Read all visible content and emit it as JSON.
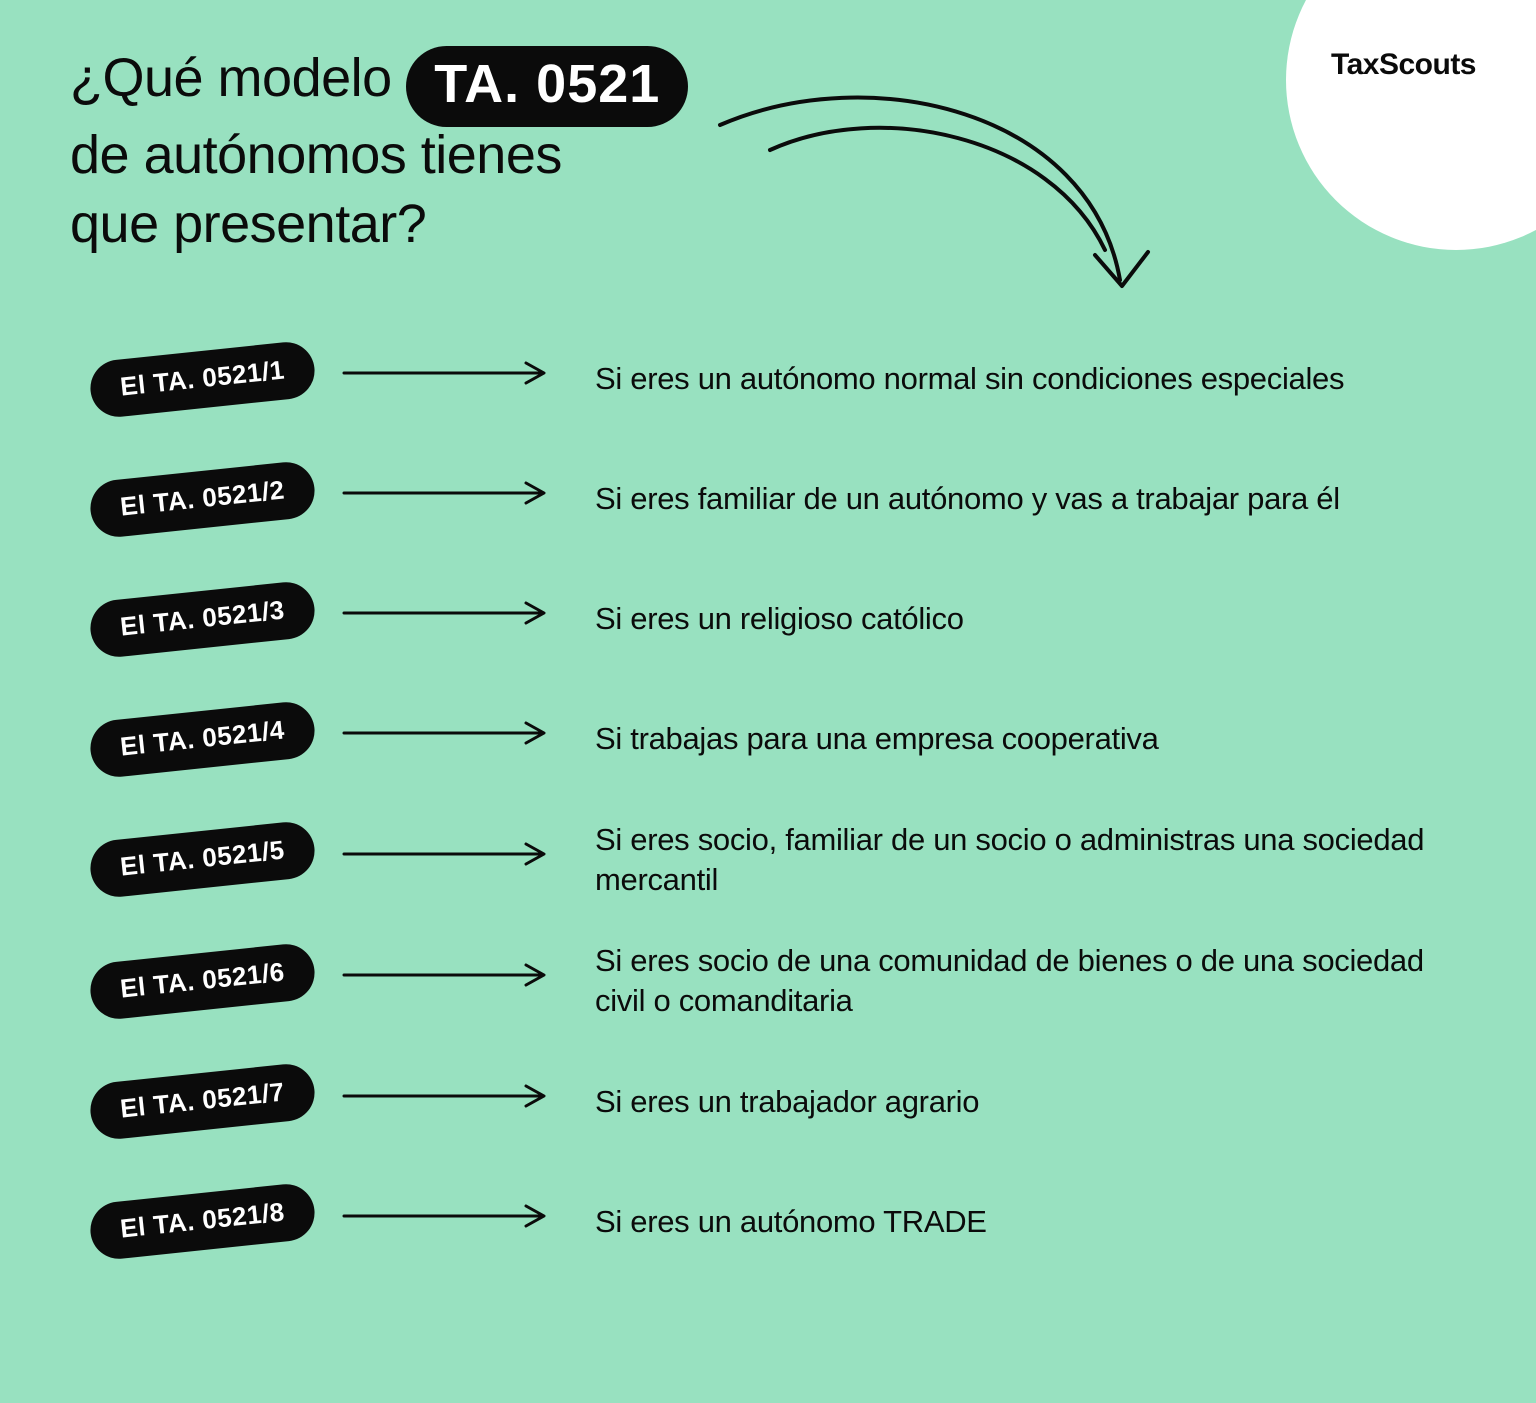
{
  "colors": {
    "background": "#98e1c0",
    "text": "#0b0b0b",
    "pill_bg": "#0b0b0b",
    "pill_text": "#ffffff",
    "corner_bg": "#ffffff",
    "arrow_stroke": "#0b0b0b"
  },
  "brand": "TaxScouts",
  "title": {
    "prefix": "¿Qué modelo",
    "highlight": "TA. 0521",
    "line2": "de autónomos tienes",
    "line3": "que presentar?"
  },
  "styling": {
    "title_fontsize": 54,
    "badge_fontsize": 26,
    "desc_fontsize": 31,
    "brand_fontsize": 30,
    "badge_rotation_deg": -6,
    "arrow_length": 200,
    "arrow_stroke_width": 3
  },
  "items": [
    {
      "label": "El TA. 0521/1",
      "desc": "Si eres un autónomo normal sin condiciones especiales"
    },
    {
      "label": "El TA. 0521/2",
      "desc": "Si eres familiar de un autónomo y vas a trabajar para él"
    },
    {
      "label": "El TA. 0521/3",
      "desc": "Si eres un religioso católico"
    },
    {
      "label": "El TA. 0521/4",
      "desc": "Si trabajas para una empresa cooperativa"
    },
    {
      "label": "El TA. 0521/5",
      "desc": "Si eres socio, familiar de un socio o administras una sociedad mercantil"
    },
    {
      "label": "El TA. 0521/6",
      "desc": "Si eres socio de una comunidad de bienes o de una sociedad civil o comanditaria"
    },
    {
      "label": "El TA. 0521/7",
      "desc": "Si eres un trabajador agrario"
    },
    {
      "label": "El TA. 0521/8",
      "desc": "Si eres un autónomo TRADE"
    }
  ]
}
